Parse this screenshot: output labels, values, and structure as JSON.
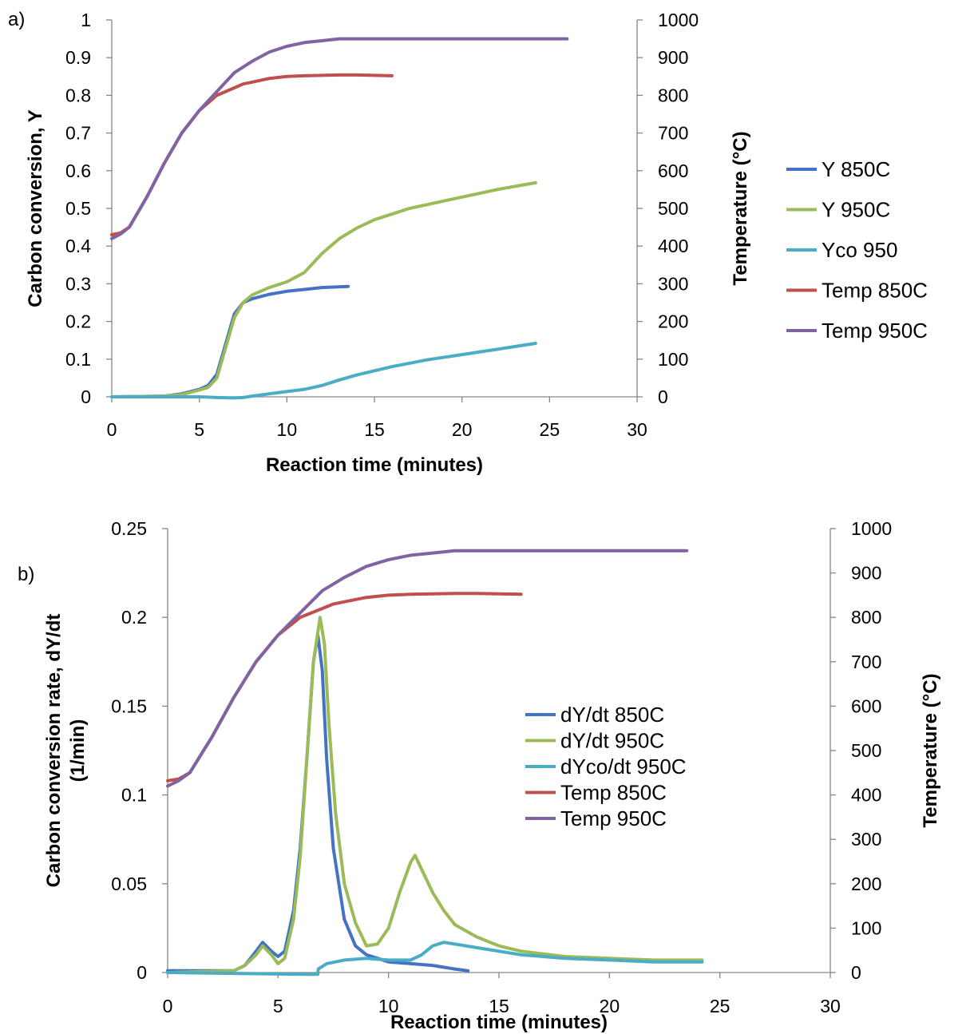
{
  "chart_data": [
    {
      "panel_label": "a)",
      "type": "line",
      "xlabel": "Reaction time (minutes)",
      "ylabel": "Carbon conversion, Y",
      "y2label": "Temperature (°C)",
      "xlim": [
        0,
        30
      ],
      "ylim": [
        0,
        1
      ],
      "y2lim": [
        0,
        1000
      ],
      "xticks": [
        "0",
        "5",
        "10",
        "15",
        "20",
        "25",
        "30"
      ],
      "yticks": [
        "0",
        "0.1",
        "0.2",
        "0.3",
        "0.4",
        "0.5",
        "0.6",
        "0.7",
        "0.8",
        "0.9",
        "1"
      ],
      "y2ticks": [
        "0",
        "100",
        "200",
        "300",
        "400",
        "500",
        "600",
        "700",
        "800",
        "900",
        "1000"
      ],
      "legend_position": "right",
      "series": [
        {
          "name": "Y 850C",
          "axis": "left",
          "color": "#4472C4",
          "x": [
            0,
            3,
            4,
            5,
            5.5,
            6,
            6.5,
            7,
            7.5,
            8,
            9,
            10,
            11,
            12,
            13.5
          ],
          "y": [
            0,
            0.002,
            0.008,
            0.02,
            0.03,
            0.06,
            0.14,
            0.22,
            0.25,
            0.26,
            0.272,
            0.28,
            0.285,
            0.29,
            0.293
          ]
        },
        {
          "name": "Y 950C",
          "axis": "left",
          "color": "#9BBB59",
          "x": [
            0,
            3,
            4,
            5,
            5.5,
            6,
            6.5,
            7,
            7.5,
            8,
            9,
            10,
            11,
            12,
            13,
            14,
            15,
            17,
            20,
            22,
            24.2
          ],
          "y": [
            0,
            0.002,
            0.006,
            0.018,
            0.025,
            0.05,
            0.13,
            0.21,
            0.25,
            0.27,
            0.29,
            0.305,
            0.33,
            0.38,
            0.42,
            0.448,
            0.47,
            0.5,
            0.53,
            0.55,
            0.568
          ]
        },
        {
          "name": "Yco 950",
          "axis": "left",
          "color": "#4BACC6",
          "x": [
            0,
            5,
            6,
            7,
            7.5,
            8,
            9,
            10,
            11,
            12,
            13,
            14,
            16,
            18,
            20,
            22,
            24.2
          ],
          "y": [
            0,
            0,
            -0.002,
            -0.003,
            -0.002,
            0.002,
            0.008,
            0.014,
            0.02,
            0.03,
            0.045,
            0.058,
            0.08,
            0.098,
            0.112,
            0.126,
            0.142
          ]
        },
        {
          "name": "Temp 850C",
          "axis": "right",
          "color": "#C0504D",
          "x": [
            0,
            0.5,
            1,
            2,
            3,
            4,
            5,
            6,
            7,
            7.5,
            8,
            9,
            10,
            11,
            12,
            13,
            14,
            15,
            16
          ],
          "y": [
            430,
            435,
            450,
            530,
            620,
            700,
            760,
            800,
            820,
            830,
            835,
            845,
            850,
            852,
            853,
            854,
            854,
            853,
            852
          ]
        },
        {
          "name": "Temp 950C",
          "axis": "right",
          "color": "#8064A2",
          "x": [
            0,
            0.5,
            1,
            2,
            3,
            4,
            5,
            6,
            7,
            8,
            9,
            10,
            11,
            12,
            13,
            14,
            16,
            18,
            20,
            22,
            24,
            26
          ],
          "y": [
            420,
            432,
            450,
            530,
            620,
            700,
            760,
            810,
            860,
            890,
            915,
            930,
            940,
            945,
            950,
            950,
            950,
            950,
            950,
            950,
            950,
            950
          ]
        }
      ]
    },
    {
      "panel_label": "b)",
      "type": "line",
      "xlabel": "Reaction time (minutes)",
      "ylabel": "Carbon conversion rate, dY/dt (1/min)",
      "ylabel_lines": [
        "Carbon conversion rate, dY/dt",
        "(1/min)"
      ],
      "y2label": "Temperature (°C)",
      "xlim": [
        0,
        30
      ],
      "ylim": [
        0,
        0.25
      ],
      "y2lim": [
        0,
        1000
      ],
      "xticks": [
        "0",
        "5",
        "10",
        "15",
        "20",
        "25",
        "30"
      ],
      "yticks": [
        "0",
        "0.05",
        "0.1",
        "0.15",
        "0.2",
        "0.25"
      ],
      "y2ticks": [
        "0",
        "100",
        "200",
        "300",
        "400",
        "500",
        "600",
        "700",
        "800",
        "900",
        "1000"
      ],
      "legend_position": "center",
      "series": [
        {
          "name": "dY/dt 850C",
          "axis": "left",
          "color": "#4472C4",
          "x": [
            0,
            3,
            3.5,
            4,
            4.3,
            4.7,
            5,
            5.3,
            5.7,
            6,
            6.3,
            6.6,
            6.8,
            7,
            7.2,
            7.5,
            8,
            8.5,
            9,
            10,
            11,
            12,
            13,
            13.6
          ],
          "y": [
            0.001,
            0.001,
            0.004,
            0.012,
            0.017,
            0.012,
            0.009,
            0.012,
            0.035,
            0.07,
            0.12,
            0.175,
            0.19,
            0.17,
            0.12,
            0.07,
            0.03,
            0.015,
            0.01,
            0.006,
            0.005,
            0.004,
            0.002,
            0.001
          ]
        },
        {
          "name": "dY/dt 950C",
          "axis": "left",
          "color": "#9BBB59",
          "x": [
            0,
            3,
            3.5,
            4,
            4.3,
            4.7,
            5,
            5.3,
            5.7,
            6,
            6.3,
            6.6,
            6.9,
            7.1,
            7.3,
            7.6,
            8,
            8.5,
            9,
            9.5,
            10,
            10.5,
            11,
            11.2,
            11.5,
            12,
            12.5,
            13,
            14,
            15,
            16,
            18,
            20,
            22,
            24.2
          ],
          "y": [
            0,
            0.001,
            0.004,
            0.01,
            0.015,
            0.01,
            0.005,
            0.008,
            0.03,
            0.065,
            0.12,
            0.175,
            0.2,
            0.185,
            0.14,
            0.09,
            0.05,
            0.028,
            0.015,
            0.016,
            0.025,
            0.045,
            0.062,
            0.066,
            0.058,
            0.045,
            0.035,
            0.027,
            0.02,
            0.015,
            0.012,
            0.009,
            0.008,
            0.007,
            0.007
          ]
        },
        {
          "name": "dYco/dt 950C",
          "axis": "left",
          "color": "#4BACC6",
          "x": [
            0,
            6.2,
            6.8,
            6.82,
            7.2,
            8,
            9,
            10,
            11,
            11.5,
            12,
            12.5,
            13,
            14,
            15,
            16,
            18,
            20,
            22,
            24.2
          ],
          "y": [
            0,
            -0.001,
            -0.001,
            0.002,
            0.005,
            0.007,
            0.008,
            0.007,
            0.007,
            0.01,
            0.015,
            0.017,
            0.016,
            0.014,
            0.012,
            0.01,
            0.008,
            0.007,
            0.006,
            0.006
          ]
        },
        {
          "name": "Temp 850C",
          "axis": "right",
          "color": "#C0504D",
          "x": [
            0,
            0.5,
            1,
            2,
            3,
            4,
            5,
            6,
            7,
            7.5,
            8,
            9,
            10,
            11,
            12,
            13,
            14,
            15,
            16
          ],
          "y": [
            432,
            436,
            450,
            530,
            620,
            700,
            760,
            800,
            820,
            830,
            835,
            845,
            850,
            852,
            853,
            854,
            854,
            853,
            852
          ]
        },
        {
          "name": "Temp 950C",
          "axis": "right",
          "color": "#8064A2",
          "x": [
            0,
            0.5,
            1,
            2,
            3,
            4,
            5,
            6,
            7,
            8,
            9,
            10,
            11,
            12,
            13,
            14,
            16,
            18,
            20,
            22,
            23.5
          ],
          "y": [
            420,
            432,
            450,
            530,
            620,
            700,
            760,
            810,
            860,
            890,
            915,
            930,
            940,
            945,
            950,
            950,
            950,
            950,
            950,
            950,
            950
          ]
        }
      ]
    }
  ]
}
